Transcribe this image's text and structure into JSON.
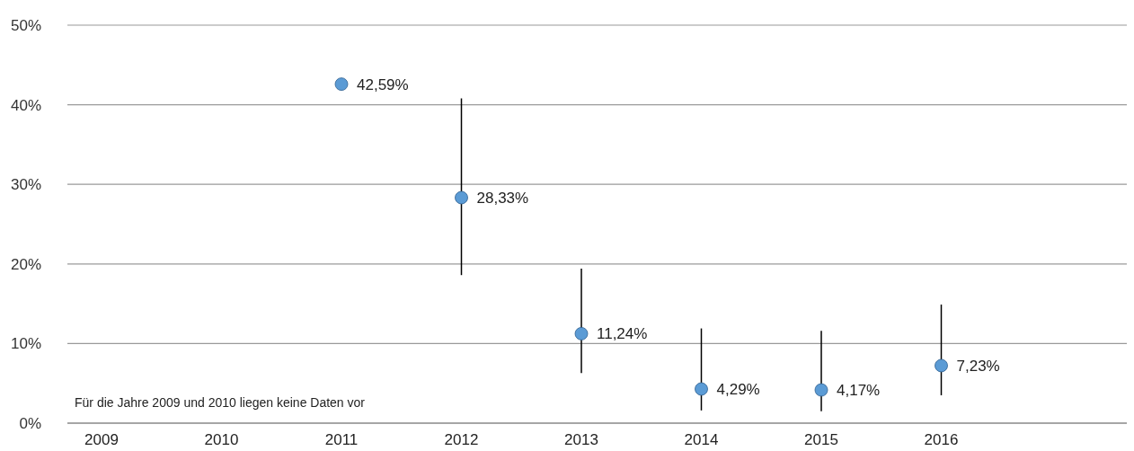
{
  "chart_data": {
    "type": "scatter",
    "categories": [
      "2009",
      "2010",
      "2011",
      "2012",
      "2013",
      "2014",
      "2015",
      "2016"
    ],
    "values": [
      null,
      null,
      42.59,
      28.33,
      11.24,
      4.29,
      4.17,
      7.23
    ],
    "value_labels": [
      null,
      null,
      "42,59%",
      "28,33%",
      "11,24%",
      "4,29%",
      "4,17%",
      "7,23%"
    ],
    "errors": [
      null,
      null,
      null,
      [
        18.6,
        40.8
      ],
      [
        6.3,
        19.4
      ],
      [
        1.6,
        11.9
      ],
      [
        1.5,
        11.6
      ],
      [
        3.5,
        14.9
      ]
    ],
    "color": "#5b9bd5",
    "marker": "circle",
    "ylim": [
      0,
      50
    ],
    "yticks": [
      {
        "value": 0,
        "label": "0%"
      },
      {
        "value": 10,
        "label": "10%"
      },
      {
        "value": 20,
        "label": "20%"
      },
      {
        "value": 30,
        "label": "30%"
      },
      {
        "value": 40,
        "label": "40%"
      },
      {
        "value": 50,
        "label": "50%"
      }
    ],
    "grid": "y",
    "annotations": [
      "Für die Jahre 2009 und 2010 liegen keine Daten vor"
    ]
  }
}
